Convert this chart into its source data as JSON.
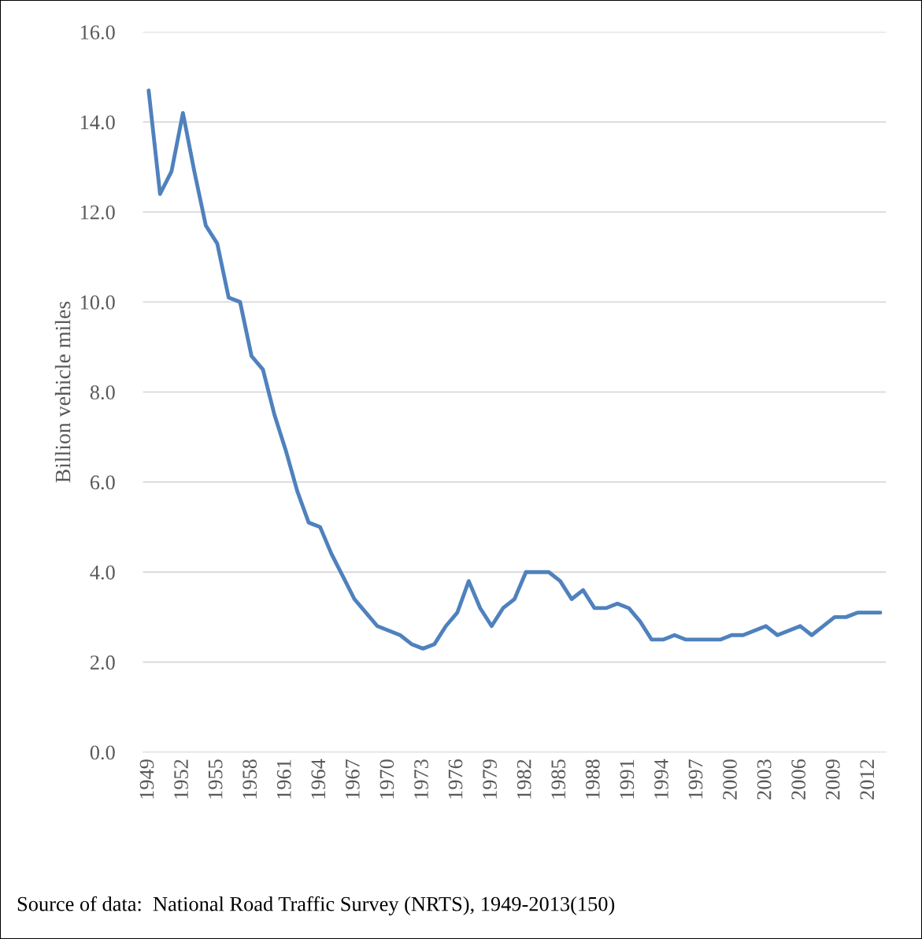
{
  "chart_data": {
    "type": "line",
    "ylabel": "Billion vehicle miles",
    "categories": [
      "1949",
      null,
      null,
      "1952",
      null,
      null,
      "1955",
      null,
      null,
      "1958",
      null,
      null,
      "1961",
      null,
      null,
      "1964",
      null,
      null,
      "1967",
      null,
      null,
      "1970",
      null,
      null,
      "1973",
      null,
      null,
      "1976",
      null,
      null,
      "1979",
      null,
      null,
      "1982",
      null,
      null,
      "1985",
      null,
      null,
      "1988",
      null,
      null,
      "1991",
      null,
      null,
      "1994",
      null,
      null,
      "1997",
      null,
      null,
      "2000",
      null,
      null,
      "2003",
      null,
      null,
      "2006",
      null,
      null,
      "2009",
      null,
      null,
      "2012",
      null
    ],
    "series": [
      {
        "color": "#4f81bd",
        "values": [
          14.7,
          12.4,
          12.9,
          14.2,
          12.9,
          11.7,
          11.3,
          10.1,
          10.0,
          8.8,
          8.5,
          7.5,
          6.7,
          5.8,
          5.1,
          5.0,
          4.4,
          3.9,
          3.4,
          3.1,
          2.8,
          2.7,
          2.6,
          2.4,
          2.3,
          2.4,
          2.8,
          3.1,
          3.8,
          3.2,
          2.8,
          3.2,
          3.4,
          4.0,
          4.0,
          4.0,
          3.8,
          3.4,
          3.6,
          3.2,
          3.2,
          3.3,
          3.2,
          2.9,
          2.5,
          2.5,
          2.6,
          2.5,
          2.5,
          2.5,
          2.5,
          2.6,
          2.6,
          2.7,
          2.8,
          2.6,
          2.7,
          2.8,
          2.6,
          2.8,
          3.0,
          3.0,
          3.1,
          3.1,
          3.1
        ]
      }
    ],
    "ylim": [
      0,
      16
    ],
    "yticks": [
      {
        "value": 0,
        "label": "0.0"
      },
      {
        "value": 2,
        "label": "2.0"
      },
      {
        "value": 4,
        "label": "4.0"
      },
      {
        "value": 6,
        "label": "6.0"
      },
      {
        "value": 8,
        "label": "8.0"
      },
      {
        "value": 10,
        "label": "10.0"
      },
      {
        "value": 12,
        "label": "12.0"
      },
      {
        "value": 14,
        "label": "14.0"
      },
      {
        "value": 16,
        "label": "16.0"
      }
    ],
    "grid": "y",
    "annotations": [
      "Source of data:  National Road Traffic Survey (NRTS), 1949-2013(150)"
    ]
  }
}
